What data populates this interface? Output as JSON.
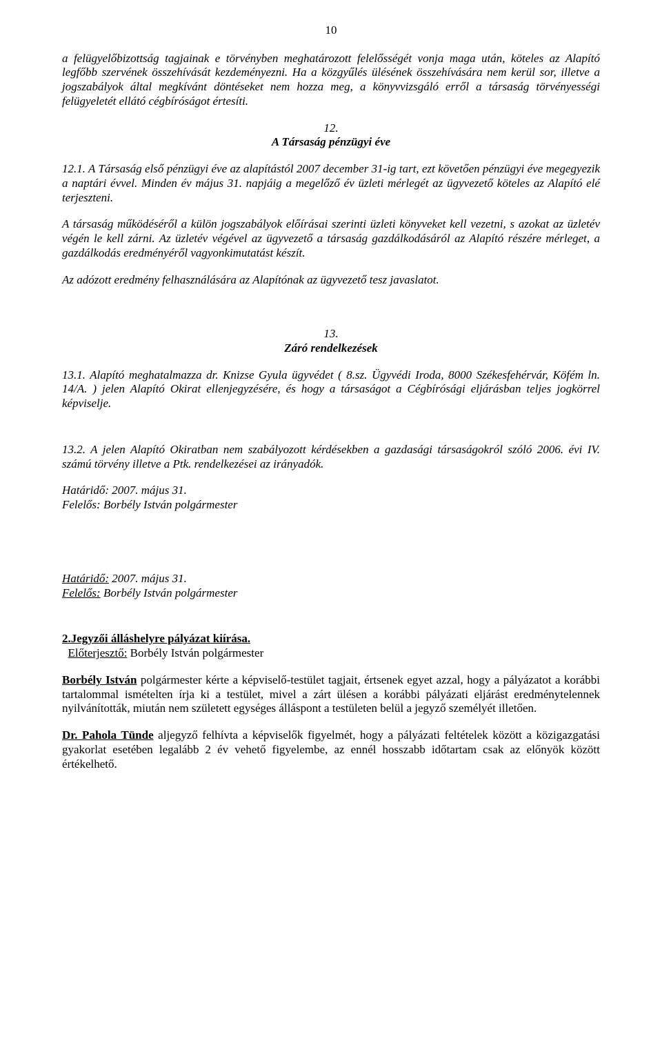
{
  "pageNumber": "10",
  "p1": "a felügyelőbizottság tagjainak e törvényben meghatározott felelősségét vonja maga után, köteles az Alapító legfőbb szervének összehívását kezdeményezni. Ha a közgyűlés ülésének összehívására nem kerül sor, illetve a jogszabályok által megkívánt döntéseket nem hozza meg, a könyvvizsgáló erről a társaság törvényességi felügyeletét ellátó cégbíróságot értesíti.",
  "sec12Num": "12.",
  "sec12Title": "A Társaság pénzügyi éve",
  "p2": "12.1. A Társaság első pénzügyi éve az alapítástól 2007 december 31-ig tart, ezt követően pénzügyi éve megegyezik a naptári évvel. Minden év május 31. napjáig a megelőző év üzleti mérlegét az ügyvezető köteles az Alapító elé terjeszteni.",
  "p3": "A társaság működéséről a külön jogszabályok előírásai szerinti üzleti könyveket kell vezetni, s azokat az üzletév végén le kell zárni. Az üzletév végével az ügyvezető a társaság gazdálkodásáról az Alapító részére mérleget, a gazdálkodás eredményéről vagyonkimutatást készít.",
  "p4": "Az adózott eredmény felhasználására az Alapítónak az ügyvezető tesz javaslatot.",
  "sec13Num": "13.",
  "sec13Title": "Záró rendelkezések",
  "p5": "13.1. Alapító meghatalmazza dr. Knizse Gyula ügyvédet ( 8.sz. Ügyvédi Iroda, 8000 Székesfehérvár, Köfém ln. 14/A. ) jelen Alapító Okirat ellenjegyzésére, és hogy a társaságot a Cégbírósági eljárásban teljes jogkörrel képviselje.",
  "p6": "13.2.   A jelen Alapító Okiratban nem szabályozott kérdésekben a gazdasági társaságokról szóló 2006. évi IV. számú  törvény illetve a Ptk. rendelkezései az irányadók.",
  "p7a": "Határidő: 2007. május 31.",
  "p7b": "Felelős: Borbély István polgármester",
  "p8aLabel": "Határidő:",
  "p8aRest": " 2007. május 31.",
  "p8bLabel": "Felelős:",
  "p8bRest": "  Borbély István polgármester",
  "heading2": "2.Jegyzői álláshelyre pályázat kiírása.",
  "presenterLabel": "Előterjesztő:",
  "presenterRest": " Borbély István polgármester",
  "p9Name": "Borbély István",
  "p9Rest": " polgármester kérte a képviselő-testület tagjait, értsenek egyet azzal, hogy a pályázatot a korábbi tartalommal ismételten írja ki a testület, mivel a zárt ülésen a korábbi pályázati eljárást eredménytelennek nyilvánították, miután nem született egységes álláspont a testületen belül a jegyző személyét illetően.",
  "p10Name": "Dr. Pahola Tünde",
  "p10Rest": " aljegyző felhívta a képviselők figyelmét, hogy a pályázati feltételek között a közigazgatási gyakorlat esetében legalább 2 év vehető figyelembe, az ennél hosszabb időtartam csak az előnyök között értékelhető."
}
